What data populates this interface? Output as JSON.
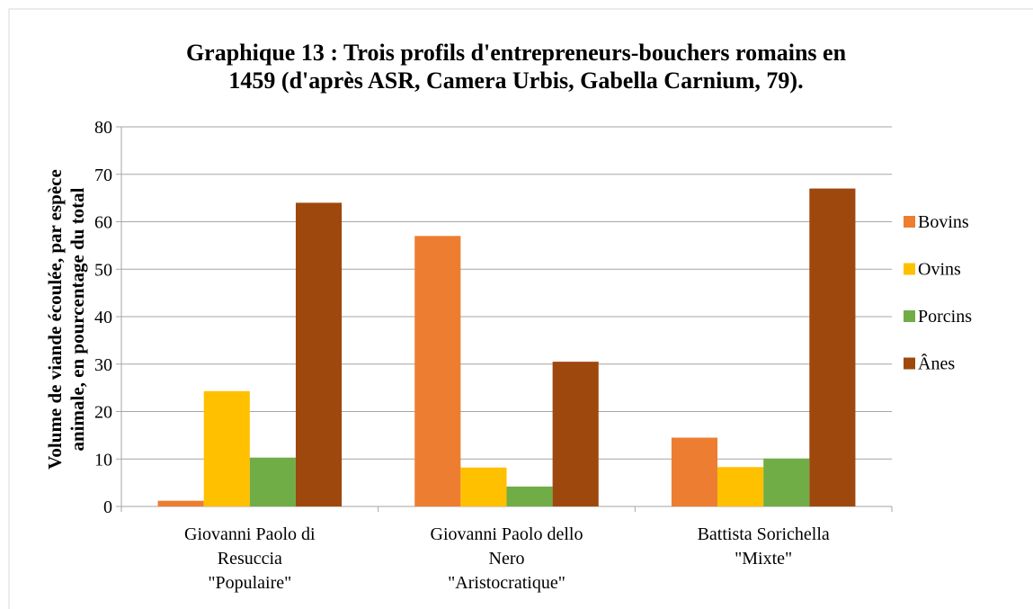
{
  "chart_data": {
    "type": "bar",
    "title": "Graphique 13 : Trois profils d'entrepreneurs-bouchers romains en\n1459 (d'après ASR, Camera Urbis, Gabella Carnium, 79).",
    "ylabel": "Volume de viande écoulée, par espèce\nanimale, en pourcentage du total",
    "categories": [
      "Giovanni Paolo di\nResuccia\n\"Populaire\"",
      "Giovanni Paolo dello\nNero\n\"Aristocratique\"",
      "Battista Sorichella\n\"Mixte\""
    ],
    "series": [
      {
        "name": "Bovins",
        "color": "#ed7d31",
        "values": [
          1.2,
          57,
          14.5
        ]
      },
      {
        "name": "Ovins",
        "color": "#ffc000",
        "values": [
          24.3,
          8.2,
          8.3
        ]
      },
      {
        "name": "Porcins",
        "color": "#70ad47",
        "values": [
          10.3,
          4.2,
          10.1
        ]
      },
      {
        "name": "Ânes",
        "color": "#9e480e",
        "values": [
          64,
          30.5,
          67
        ]
      }
    ],
    "ylim": [
      0,
      80
    ],
    "yticks": [
      0,
      10,
      20,
      30,
      40,
      50,
      60,
      70,
      80
    ],
    "grid": true,
    "legend": "right"
  }
}
